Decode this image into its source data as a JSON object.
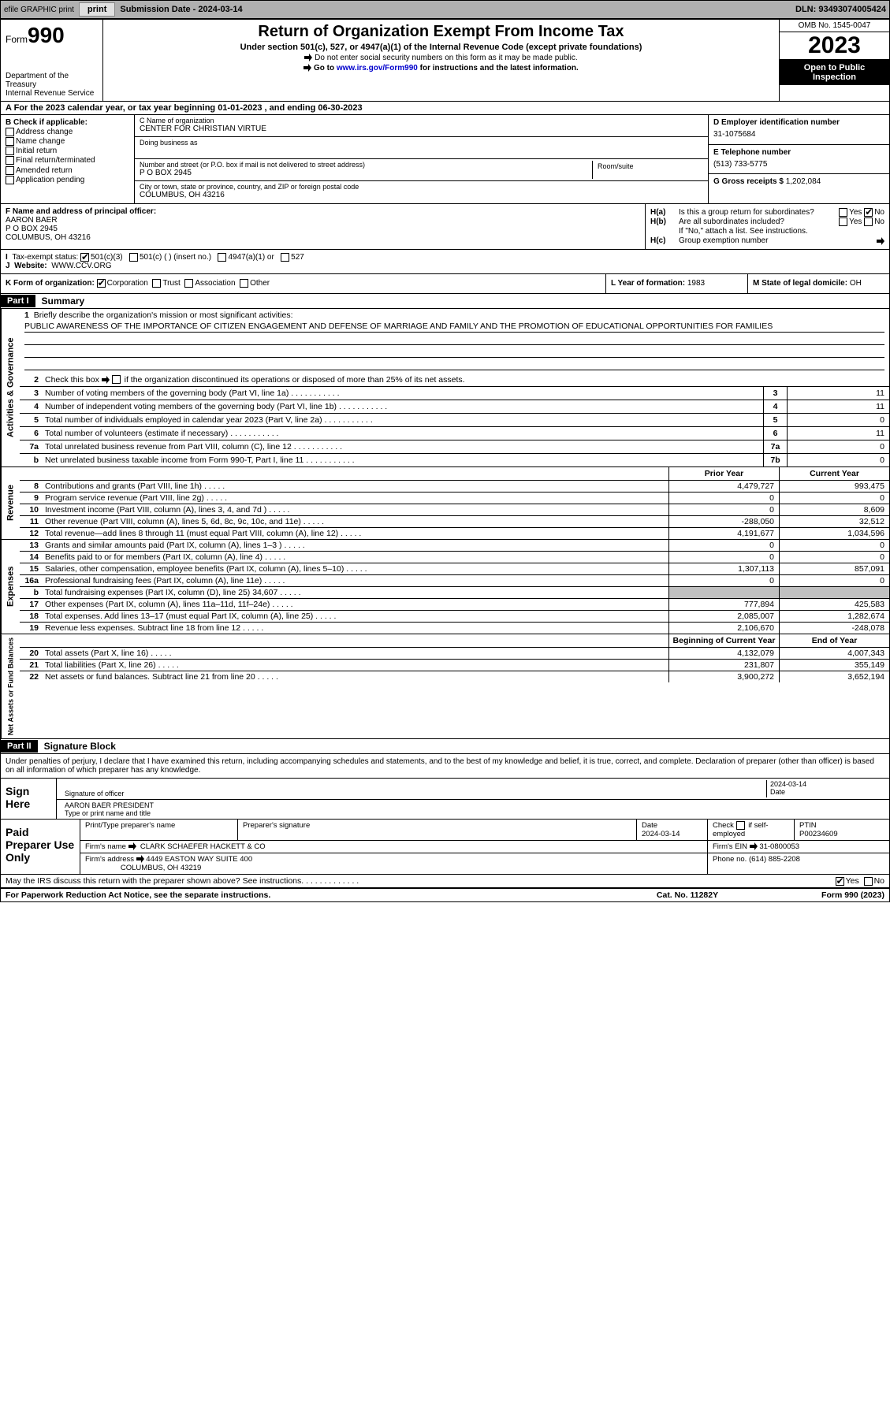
{
  "topbar": {
    "efile": "efile GRAPHIC print",
    "submission": "Submission Date - 2024-03-14",
    "dln": "DLN: 93493074005424"
  },
  "header": {
    "form_label": "Form",
    "form_num": "990",
    "title": "Return of Organization Exempt From Income Tax",
    "sub1": "Under section 501(c), 527, or 4947(a)(1) of the Internal Revenue Code (except private foundations)",
    "sub2": "Do not enter social security numbers on this form as it may be made public.",
    "sub3_pre": "Go to ",
    "sub3_link": "www.irs.gov/Form990",
    "sub3_post": " for instructions and the latest information.",
    "dept": "Department of the Treasury\nInternal Revenue Service",
    "omb": "OMB No. 1545-0047",
    "year": "2023",
    "inspect": "Open to Public Inspection"
  },
  "row_a": "A For the 2023 calendar year, or tax year beginning 01-01-2023   , and ending 06-30-2023",
  "col_b": {
    "head": "B Check if applicable:",
    "items": [
      "Address change",
      "Name change",
      "Initial return",
      "Final return/terminated",
      "Amended return",
      "Application pending"
    ]
  },
  "col_c": {
    "name_lbl": "C Name of organization",
    "name": "CENTER FOR CHRISTIAN VIRTUE",
    "dba_lbl": "Doing business as",
    "addr_lbl": "Number and street (or P.O. box if mail is not delivered to street address)",
    "room_lbl": "Room/suite",
    "addr": "P O BOX 2945",
    "city_lbl": "City or town, state or province, country, and ZIP or foreign postal code",
    "city": "COLUMBUS, OH  43216"
  },
  "col_d": {
    "ein_lbl": "D Employer identification number",
    "ein": "31-1075684",
    "tel_lbl": "E Telephone number",
    "tel": "(513) 733-5775",
    "gross_lbl": "G Gross receipts $",
    "gross": "1,202,084"
  },
  "col_f": {
    "lbl": "F Name and address of principal officer:",
    "name": "AARON BAER",
    "addr1": "P O BOX 2945",
    "addr2": "COLUMBUS, OH  43216"
  },
  "col_h": {
    "ha_txt": "Is this a group return for subordinates?",
    "hb_txt": "Are all subordinates included?",
    "hb_note": "If \"No,\" attach a list. See instructions.",
    "hc_txt": "Group exemption number"
  },
  "row_i": {
    "lbl": "Tax-exempt status:",
    "opts": [
      "501(c)(3)",
      "501(c) (  ) (insert no.)",
      "4947(a)(1) or",
      "527"
    ]
  },
  "row_j": {
    "lbl": "Website:",
    "val": "WWW.CCV.ORG"
  },
  "row_k": {
    "lbl": "K Form of organization:",
    "opts": [
      "Corporation",
      "Trust",
      "Association",
      "Other"
    ]
  },
  "row_l": {
    "lbl": "L Year of formation:",
    "val": "1983"
  },
  "row_m": {
    "lbl": "M State of legal domicile:",
    "val": "OH"
  },
  "part1": {
    "hdr": "Part I",
    "title": "Summary"
  },
  "summary": {
    "q1_lbl": "Briefly describe the organization's mission or most significant activities:",
    "q1_txt": "PUBLIC AWARENESS OF THE IMPORTANCE OF CITIZEN ENGAGEMENT AND DEFENSE OF MARRIAGE AND FAMILY AND THE PROMOTION OF EDUCATIONAL OPPORTUNITIES FOR FAMILIES",
    "q2": "Check this box       if the organization discontinued its operations or disposed of more than 25% of its net assets.",
    "rows": [
      {
        "n": "3",
        "t": "Number of voting members of the governing body (Part VI, line 1a)",
        "box": "3",
        "v": "11"
      },
      {
        "n": "4",
        "t": "Number of independent voting members of the governing body (Part VI, line 1b)",
        "box": "4",
        "v": "11"
      },
      {
        "n": "5",
        "t": "Total number of individuals employed in calendar year 2023 (Part V, line 2a)",
        "box": "5",
        "v": "0"
      },
      {
        "n": "6",
        "t": "Total number of volunteers (estimate if necessary)",
        "box": "6",
        "v": "11"
      },
      {
        "n": "7a",
        "t": "Total unrelated business revenue from Part VIII, column (C), line 12",
        "box": "7a",
        "v": "0"
      },
      {
        "n": "b",
        "t": "Net unrelated business taxable income from Form 990-T, Part I, line 11",
        "box": "7b",
        "v": "0"
      }
    ]
  },
  "revenue": {
    "tab": "Revenue",
    "hdr_prior": "Prior Year",
    "hdr_curr": "Current Year",
    "rows": [
      {
        "n": "8",
        "t": "Contributions and grants (Part VIII, line 1h)",
        "p": "4,479,727",
        "c": "993,475"
      },
      {
        "n": "9",
        "t": "Program service revenue (Part VIII, line 2g)",
        "p": "0",
        "c": "0"
      },
      {
        "n": "10",
        "t": "Investment income (Part VIII, column (A), lines 3, 4, and 7d )",
        "p": "0",
        "c": "8,609"
      },
      {
        "n": "11",
        "t": "Other revenue (Part VIII, column (A), lines 5, 6d, 8c, 9c, 10c, and 11e)",
        "p": "-288,050",
        "c": "32,512"
      },
      {
        "n": "12",
        "t": "Total revenue—add lines 8 through 11 (must equal Part VIII, column (A), line 12)",
        "p": "4,191,677",
        "c": "1,034,596"
      }
    ]
  },
  "expenses": {
    "tab": "Expenses",
    "rows": [
      {
        "n": "13",
        "t": "Grants and similar amounts paid (Part IX, column (A), lines 1–3 )",
        "p": "0",
        "c": "0"
      },
      {
        "n": "14",
        "t": "Benefits paid to or for members (Part IX, column (A), line 4)",
        "p": "0",
        "c": "0"
      },
      {
        "n": "15",
        "t": "Salaries, other compensation, employee benefits (Part IX, column (A), lines 5–10)",
        "p": "1,307,113",
        "c": "857,091"
      },
      {
        "n": "16a",
        "t": "Professional fundraising fees (Part IX, column (A), line 11e)",
        "p": "0",
        "c": "0"
      },
      {
        "n": "b",
        "t": "Total fundraising expenses (Part IX, column (D), line 25) 34,607",
        "p": "",
        "c": "",
        "shade": true
      },
      {
        "n": "17",
        "t": "Other expenses (Part IX, column (A), lines 11a–11d, 11f–24e)",
        "p": "777,894",
        "c": "425,583"
      },
      {
        "n": "18",
        "t": "Total expenses. Add lines 13–17 (must equal Part IX, column (A), line 25)",
        "p": "2,085,007",
        "c": "1,282,674"
      },
      {
        "n": "19",
        "t": "Revenue less expenses. Subtract line 18 from line 12",
        "p": "2,106,670",
        "c": "-248,078"
      }
    ]
  },
  "netassets": {
    "tab": "Net Assets or Fund Balances",
    "hdr_beg": "Beginning of Current Year",
    "hdr_end": "End of Year",
    "rows": [
      {
        "n": "20",
        "t": "Total assets (Part X, line 16)",
        "p": "4,132,079",
        "c": "4,007,343"
      },
      {
        "n": "21",
        "t": "Total liabilities (Part X, line 26)",
        "p": "231,807",
        "c": "355,149"
      },
      {
        "n": "22",
        "t": "Net assets or fund balances. Subtract line 21 from line 20",
        "p": "3,900,272",
        "c": "3,652,194"
      }
    ]
  },
  "part2": {
    "hdr": "Part II",
    "title": "Signature Block"
  },
  "sig": {
    "decl": "Under penalties of perjury, I declare that I have examined this return, including accompanying schedules and statements, and to the best of my knowledge and belief, it is true, correct, and complete. Declaration of preparer (other than officer) is based on all information of which preparer has any knowledge.",
    "here": "Sign Here",
    "sig_lbl": "Signature of officer",
    "name": "AARON BAER  PRESIDENT",
    "name_lbl": "Type or print name and title",
    "date": "2024-03-14",
    "date_lbl": "Date"
  },
  "prep": {
    "hdr": "Paid Preparer Use Only",
    "pname_lbl": "Print/Type preparer's name",
    "psig_lbl": "Preparer's signature",
    "pdate_lbl": "Date",
    "pdate": "2024-03-14",
    "pself_lbl": "Check        if self-employed",
    "ptin_lbl": "PTIN",
    "ptin": "P00234609",
    "firm_lbl": "Firm's name",
    "firm": "CLARK SCHAEFER HACKETT & CO",
    "fein_lbl": "Firm's EIN",
    "fein": "31-0800053",
    "faddr_lbl": "Firm's address",
    "faddr1": "4449 EASTON WAY SUITE 400",
    "faddr2": "COLUMBUS, OH  43219",
    "phone_lbl": "Phone no.",
    "phone": "(614) 885-2208"
  },
  "may": "May the IRS discuss this return with the preparer shown above? See instructions.",
  "footer": {
    "l": "For Paperwork Reduction Act Notice, see the separate instructions.",
    "m": "Cat. No. 11282Y",
    "r": "Form 990 (2023)"
  },
  "activities_tab": "Activities & Governance"
}
